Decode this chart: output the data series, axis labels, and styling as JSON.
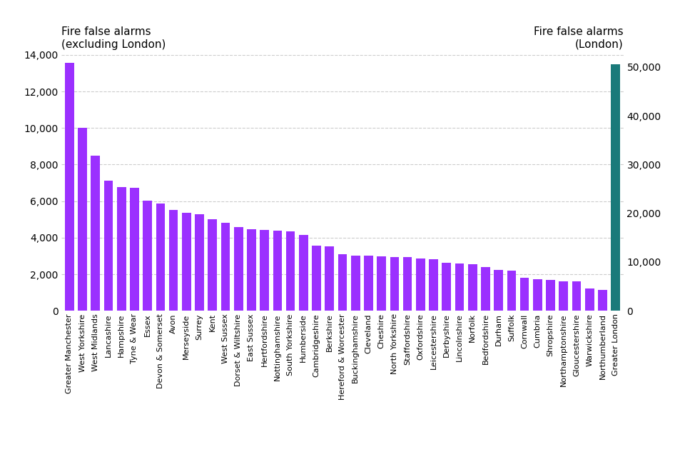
{
  "categories": [
    "Greater Manchester",
    "West Yorkshire",
    "West Midlands",
    "Lancashire",
    "Hampshire",
    "Tyne & Wear",
    "Essex",
    "Devon & Somerset",
    "Avon",
    "Merseyside",
    "Surrey",
    "Kent",
    "West Sussex",
    "Dorset & Wiltshire",
    "East Sussex",
    "Hertfordshire",
    "Nottinghamshire",
    "South Yorkshire",
    "Humberside",
    "Cambridgeshire",
    "Berkshire",
    "Hereford & Worcester",
    "Buckinghamshire",
    "Cleveland",
    "Cheshire",
    "North Yorkshire",
    "Staffordshire",
    "Oxfordshire",
    "Leicestershire",
    "Derbyshire",
    "Lincolnshire",
    "Norfolk",
    "Bedfordshire",
    "Durham",
    "Suffolk",
    "Cornwall",
    "Cumbria",
    "Shropshire",
    "Northamptonshire",
    "Gloucestershire",
    "Warwickshire",
    "Northumberland"
  ],
  "values": [
    13550,
    10000,
    8500,
    7100,
    6750,
    6720,
    6020,
    5850,
    5520,
    5350,
    5280,
    5000,
    4820,
    4580,
    4480,
    4430,
    4380,
    4350,
    4150,
    3580,
    3520,
    3080,
    3020,
    3010,
    2980,
    2950,
    2920,
    2860,
    2820,
    2620,
    2600,
    2530,
    2380,
    2250,
    2200,
    1820,
    1720,
    1680,
    1620,
    1610,
    1230,
    1150
  ],
  "london_value": 50500,
  "bar_color_purple": "#9B30FF",
  "bar_color_teal": "#1a7a7a",
  "left_ylabel_line1": "Fire false alarms",
  "left_ylabel_line2": "(excluding London)",
  "right_ylabel_line1": "Fire false alarms",
  "right_ylabel_line2": "(London)",
  "left_ylim": [
    0,
    14000
  ],
  "right_ylim": [
    0,
    52500
  ],
  "left_yticks": [
    0,
    2000,
    4000,
    6000,
    8000,
    10000,
    12000,
    14000
  ],
  "right_yticks": [
    0,
    10000,
    20000,
    30000,
    40000,
    50000
  ],
  "background_color": "#ffffff",
  "grid_color": "#cccccc",
  "label_fontsize": 11,
  "tick_fontsize": 10,
  "xtick_fontsize": 8
}
